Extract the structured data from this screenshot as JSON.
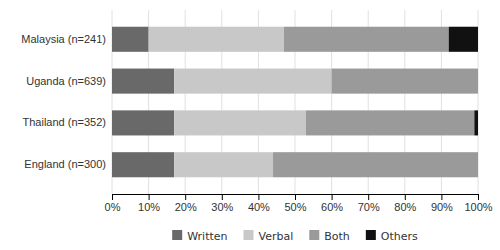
{
  "chart_data": {
    "type": "bar",
    "orientation": "horizontal",
    "stacked": true,
    "categories": [
      "Malaysia (n=241)",
      "Uganda (n=639)",
      "Thailand (n=352)",
      "England (n=300)"
    ],
    "series": [
      {
        "name": "Written",
        "color": "#696969",
        "values": [
          10,
          17,
          17,
          17
        ]
      },
      {
        "name": "Verbal",
        "color": "#c8c8c8",
        "values": [
          37,
          43,
          36,
          27
        ]
      },
      {
        "name": "Both",
        "color": "#9a9a9a",
        "values": [
          45,
          40,
          46,
          56
        ]
      },
      {
        "name": "Others",
        "color": "#111111",
        "values": [
          8,
          0,
          1,
          0
        ]
      }
    ],
    "xlim": [
      0,
      100
    ],
    "xticks": [
      {
        "value": 0,
        "label": "0%"
      },
      {
        "value": 10,
        "label": "10%"
      },
      {
        "value": 20,
        "label": "20%"
      },
      {
        "value": 30,
        "label": "30%"
      },
      {
        "value": 40,
        "label": "40%"
      },
      {
        "value": 50,
        "label": "50%"
      },
      {
        "value": 60,
        "label": "60%"
      },
      {
        "value": 70,
        "label": "70%"
      },
      {
        "value": 80,
        "label": "80%"
      },
      {
        "value": 90,
        "label": "90%"
      },
      {
        "value": 100,
        "label": "100%"
      }
    ],
    "grid": true,
    "legend": "bottom"
  }
}
